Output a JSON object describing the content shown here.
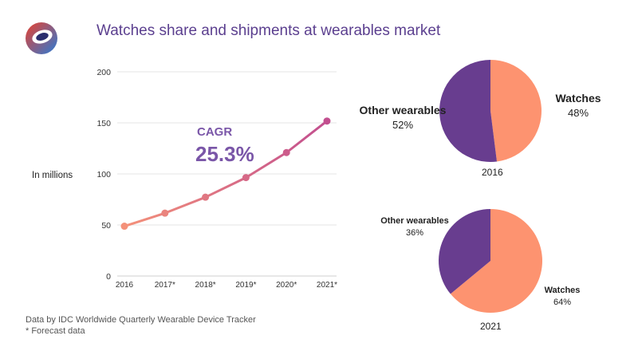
{
  "title": "Watches share and shipments at wearables market",
  "units_label": "In millions",
  "cagr": {
    "label": "CAGR",
    "value": "25.3%"
  },
  "footer": {
    "source": "Data by IDC Worldwide Quarterly Wearable Device Tracker",
    "note": "* Forecast data"
  },
  "colors": {
    "purple": "#683d8f",
    "salmon": "#fd9370",
    "line_start": "#f4917a",
    "line_end": "#c24f8f",
    "title": "#5b3f8f"
  },
  "chart_data": [
    {
      "type": "line",
      "categories": [
        "2016",
        "2017*",
        "2018*",
        "2019*",
        "2020*",
        "2021*"
      ],
      "values": [
        48.8,
        61.6,
        77.2,
        96.4,
        120.9,
        151.8
      ],
      "ylabel": "In millions",
      "ylim": [
        0,
        200
      ],
      "yticks": [
        0,
        50,
        100,
        150,
        200
      ],
      "grid": true
    },
    {
      "type": "pie",
      "title": "2016",
      "slices": [
        {
          "label": "Watches",
          "value": 48,
          "display": "48%",
          "color": "#fd9370"
        },
        {
          "label": "Other wearables",
          "value": 52,
          "display": "52%",
          "color": "#683d8f"
        }
      ]
    },
    {
      "type": "pie",
      "title": "2021",
      "slices": [
        {
          "label": "Watches",
          "value": 64,
          "display": "64%",
          "color": "#fd9370"
        },
        {
          "label": "Other wearables",
          "value": 36,
          "display": "36%",
          "color": "#683d8f"
        }
      ]
    }
  ]
}
